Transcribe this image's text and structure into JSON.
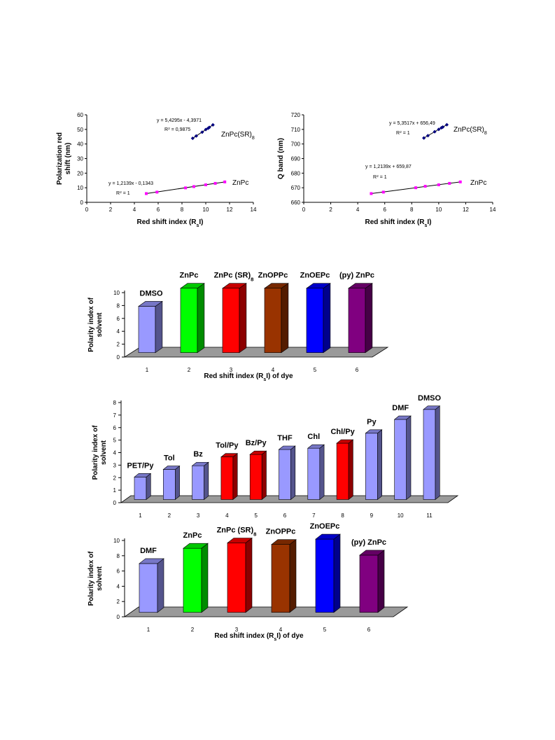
{
  "charts": [
    {
      "type": "scatter",
      "xlabel": [
        "Red shift index (R",
        "s",
        "I)"
      ],
      "ylabel": [
        "Polarization red",
        "shift (nm)"
      ],
      "xlim": [
        0,
        14
      ],
      "xticks": [
        0,
        2,
        4,
        6,
        8,
        10,
        12,
        14
      ],
      "ylim": [
        0,
        60
      ],
      "yticks": [
        0,
        10,
        20,
        30,
        40,
        50,
        60
      ],
      "series": [
        {
          "name": "ZnPc(SR)8",
          "label": "ZnPc(SR)",
          "label_sub": "8",
          "color": "#000080",
          "marker": "diamond",
          "x": [
            8.9,
            9.2,
            9.7,
            10.0,
            10.2,
            10.3,
            10.6
          ],
          "y": [
            43.9,
            45.5,
            48.1,
            49.9,
            50.8,
            51.4,
            53.1
          ],
          "equation": "y = 5,4295x - 4,3971",
          "r2": [
            "R",
            "2",
            " = 0,9875"
          ]
        },
        {
          "name": "ZnPc",
          "label": "ZnPc",
          "label_sub": "",
          "color": "#ff00ff",
          "marker": "square",
          "x": [
            5.0,
            5.9,
            8.3,
            9.0,
            10.0,
            10.8,
            11.6
          ],
          "y": [
            6.0,
            7.0,
            9.9,
            10.8,
            12.0,
            13.0,
            14.0
          ],
          "equation": "y = 1,2139x - 0,1343",
          "r2": [
            "R",
            "2",
            " = 1"
          ]
        }
      ]
    },
    {
      "type": "scatter",
      "xlabel": [
        "Red shift index (R",
        "s",
        "I)"
      ],
      "ylabel": [
        "Q band (nm)",
        ""
      ],
      "xlim": [
        0,
        14
      ],
      "xticks": [
        0,
        2,
        4,
        6,
        8,
        10,
        12,
        14
      ],
      "ylim": [
        660,
        720
      ],
      "yticks": [
        660,
        670,
        680,
        690,
        700,
        710,
        720
      ],
      "series": [
        {
          "name": "ZnPc(SR)8",
          "label": "ZnPc(SR)",
          "label_sub": "8",
          "color": "#000080",
          "marker": "diamond",
          "x": [
            8.9,
            9.2,
            9.7,
            10.0,
            10.2,
            10.3,
            10.6
          ],
          "y": [
            704.1,
            705.7,
            708.4,
            710.0,
            711.1,
            711.6,
            713.2
          ],
          "equation": "y = 5,3517x + 656,49",
          "r2": [
            "R",
            "2",
            " = 1"
          ]
        },
        {
          "name": "ZnPc",
          "label": "ZnPc",
          "label_sub": "",
          "color": "#ff00ff",
          "marker": "square",
          "x": [
            5.0,
            5.9,
            8.3,
            9.0,
            10.0,
            10.8,
            11.6
          ],
          "y": [
            666.0,
            667.0,
            670.0,
            671.0,
            672.0,
            673.0,
            674.0
          ],
          "equation": "y = 1,2139x + 659,87",
          "r2": [
            "R",
            "2",
            " = 1"
          ]
        }
      ]
    },
    {
      "type": "bar",
      "xlabel": [
        "Red  shift index (R",
        "s",
        "I) of dye"
      ],
      "ylabel": [
        "Polarity index of",
        "solvent"
      ],
      "ylim": [
        0,
        10
      ],
      "yticks": [
        0,
        2,
        4,
        6,
        8,
        10
      ],
      "categories": [
        "1",
        "2",
        "3",
        "4",
        "5",
        "6"
      ],
      "values": [
        7.2,
        10.0,
        10.0,
        10.0,
        10.0,
        10.0
      ],
      "colors": [
        "#9999ff",
        "#00ff00",
        "#ff0000",
        "#993300",
        "#0000ff",
        "#800080"
      ],
      "bar_labels": [
        [
          "DMSO",
          ""
        ],
        [
          "ZnPc",
          ""
        ],
        [
          "ZnPc (SR)",
          "8"
        ],
        [
          "ZnOPPc",
          ""
        ],
        [
          "ZnOEPc",
          ""
        ],
        [
          "(py) ZnPc",
          ""
        ]
      ]
    },
    {
      "type": "bar",
      "xlabel": [
        "",
        "",
        ""
      ],
      "ylabel": [
        "Polarity index of",
        "solvent"
      ],
      "ylim": [
        0,
        8
      ],
      "yticks": [
        0,
        1,
        2,
        3,
        4,
        5,
        6,
        7,
        8
      ],
      "categories": [
        "1",
        "2",
        "3",
        "4",
        "5",
        "6",
        "7",
        "8",
        "9",
        "10",
        "11"
      ],
      "values": [
        1.8,
        2.4,
        2.7,
        3.4,
        3.6,
        4.0,
        4.1,
        4.5,
        5.3,
        6.4,
        7.2
      ],
      "colors": [
        "#9999ff",
        "#9999ff",
        "#9999ff",
        "#ff0000",
        "#ff0000",
        "#9999ff",
        "#9999ff",
        "#ff0000",
        "#9999ff",
        "#9999ff",
        "#9999ff"
      ],
      "bar_labels": [
        [
          "PET/Py",
          ""
        ],
        [
          "Tol",
          ""
        ],
        [
          "Bz",
          ""
        ],
        [
          "Tol/Py",
          ""
        ],
        [
          "Bz/Py",
          ""
        ],
        [
          "THF",
          ""
        ],
        [
          "Chl",
          ""
        ],
        [
          "Chl/Py",
          ""
        ],
        [
          "Py",
          ""
        ],
        [
          "DMF",
          ""
        ],
        [
          "DMSO",
          ""
        ]
      ]
    },
    {
      "type": "bar",
      "xlabel": [
        "Red  shift index (R",
        "s",
        "I) of dye"
      ],
      "ylabel": [
        "Polarity index of",
        "solvent"
      ],
      "ylim": [
        0,
        10
      ],
      "yticks": [
        0,
        2,
        4,
        6,
        8,
        10
      ],
      "categories": [
        "1",
        "2",
        "3",
        "4",
        "5",
        "6"
      ],
      "values": [
        6.4,
        8.4,
        9.1,
        8.9,
        9.6,
        7.5
      ],
      "colors": [
        "#9999ff",
        "#00ff00",
        "#ff0000",
        "#993300",
        "#0000ff",
        "#800080"
      ],
      "bar_labels": [
        [
          "DMF",
          ""
        ],
        [
          "ZnPc",
          ""
        ],
        [
          "ZnPc (SR)",
          "8"
        ],
        [
          "ZnOPPc",
          ""
        ],
        [
          "ZnOEPc",
          ""
        ],
        [
          "(py) ZnPc",
          ""
        ]
      ]
    }
  ]
}
